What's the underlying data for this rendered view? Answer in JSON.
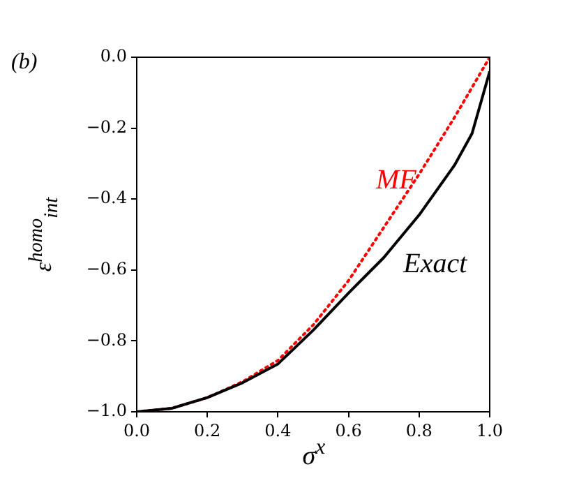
{
  "chart_data": {
    "type": "line",
    "xlabel": "σ$^{x}$",
    "ylabel": "ε$^{homo}$$_{int}$",
    "annotations": [
      "(b)"
    ],
    "xlim": [
      0,
      1
    ],
    "ylim": [
      -1,
      0
    ],
    "xticks": [
      {
        "value": 0,
        "label": "0.0"
      },
      {
        "value": 0.2,
        "label": "0.2"
      },
      {
        "value": 0.4,
        "label": "0.4"
      },
      {
        "value": 0.6,
        "label": "0.6"
      },
      {
        "value": 0.8,
        "label": "0.8"
      },
      {
        "value": 1,
        "label": "1.0"
      }
    ],
    "yticks": [
      {
        "value": -1,
        "label": "−1.0"
      },
      {
        "value": -0.8,
        "label": "−0.8"
      },
      {
        "value": -0.6,
        "label": "−0.6"
      },
      {
        "value": -0.4,
        "label": "−0.4"
      },
      {
        "value": -0.2,
        "label": "−0.2"
      },
      {
        "value": 0,
        "label": "0.0"
      }
    ],
    "grid": false,
    "legend": false,
    "marker": "none",
    "series": [
      {
        "name": "Exact",
        "color": "#000000",
        "line_style": "solid",
        "x": [
          0,
          0.1,
          0.2,
          0.3,
          0.4,
          0.5,
          0.6,
          0.7,
          0.8,
          0.9,
          0.95,
          1
        ],
        "values": [
          -1,
          -0.99,
          -0.96,
          -0.918,
          -0.865,
          -0.77,
          -0.665,
          -0.565,
          -0.445,
          -0.305,
          -0.215,
          -0.04
        ]
      },
      {
        "name": "MF",
        "color": "#ff0000",
        "line_style": "dotted",
        "x": [
          0,
          0.1,
          0.2,
          0.3,
          0.4,
          0.5,
          0.6,
          0.7,
          0.8,
          0.9,
          1
        ],
        "values": [
          -1,
          -0.99,
          -0.96,
          -0.915,
          -0.855,
          -0.755,
          -0.63,
          -0.48,
          -0.33,
          -0.17,
          0
        ]
      }
    ]
  }
}
